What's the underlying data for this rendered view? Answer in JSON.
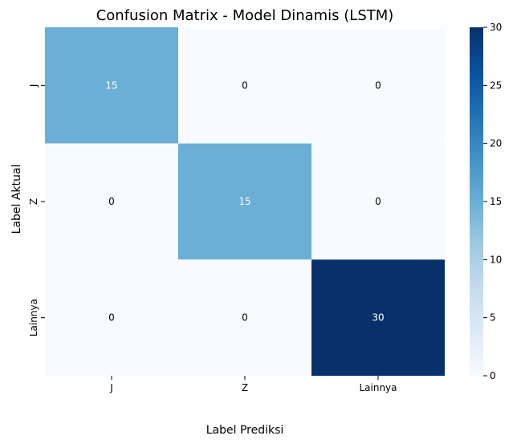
{
  "chart_data": {
    "type": "heatmap",
    "title": "Confusion Matrix - Model Dinamis (LSTM)",
    "xlabel": "Label Prediksi",
    "ylabel": "Label Aktual",
    "x_categories": [
      "J",
      "Z",
      "Lainnya"
    ],
    "y_categories": [
      "J",
      "Z",
      "Lainnya"
    ],
    "values": [
      [
        15,
        0,
        0
      ],
      [
        0,
        15,
        0
      ],
      [
        0,
        0,
        30
      ]
    ],
    "colorbar": {
      "min": 0,
      "max": 30,
      "ticks": [
        "0",
        "5",
        "10",
        "15",
        "20",
        "25",
        "30"
      ]
    },
    "colormap": "Blues",
    "colors": {
      "low": "#f7fbff",
      "mid": "#6baed6",
      "high": "#08306b"
    }
  }
}
